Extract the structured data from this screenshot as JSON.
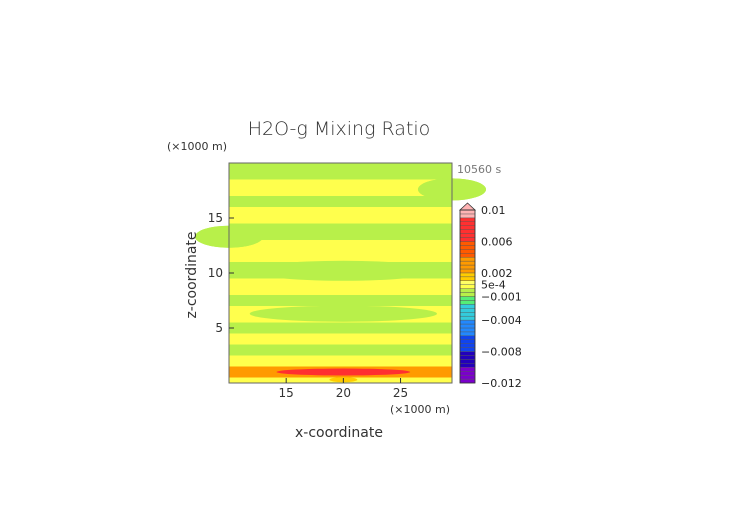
{
  "chart_data": {
    "type": "heatmap",
    "title": "H2O-g Mixing Ratio",
    "time_label": "10560 s",
    "xlabel": "x-coordinate",
    "ylabel": "z-coordinate",
    "x_unit": "(×1000 m)",
    "y_unit": "(×1000 m)",
    "xlim": [
      10,
      29.5
    ],
    "ylim": [
      0,
      20
    ],
    "x_ticks": [
      15,
      20,
      25
    ],
    "y_ticks": [
      5,
      10,
      15
    ],
    "colorbar": {
      "ticks": [
        {
          "value": 0.01,
          "label": "0.01"
        },
        {
          "value": 0.006,
          "label": "0.006"
        },
        {
          "value": 0.002,
          "label": "0.002"
        },
        {
          "value": 0.0005,
          "label": "5e-4"
        },
        {
          "value": -0.001,
          "label": "−0.001"
        },
        {
          "value": -0.004,
          "label": "−0.004"
        },
        {
          "value": -0.008,
          "label": "−0.008"
        },
        {
          "value": -0.012,
          "label": "−0.012"
        }
      ],
      "range": [
        -0.012,
        0.01
      ],
      "extend": "max"
    },
    "field_bands": [
      {
        "z": [
          0,
          0.5
        ],
        "value": 0.0002
      },
      {
        "z": [
          0.5,
          1.5
        ],
        "value": 0.003,
        "peak": {
          "x": 20,
          "z": 1.0,
          "value": 0.008
        }
      },
      {
        "z": [
          1.5,
          2.5
        ],
        "value": 0.0004
      },
      {
        "z": [
          2.5,
          3.5
        ],
        "value": -0.0006
      },
      {
        "z": [
          3.5,
          4.5
        ],
        "value": 0.0003
      },
      {
        "z": [
          4.5,
          5.5
        ],
        "value": -0.0005
      },
      {
        "z": [
          5.5,
          7
        ],
        "value": 0.0003
      },
      {
        "z": [
          7,
          8
        ],
        "value": -0.0006
      },
      {
        "z": [
          8,
          9.5
        ],
        "value": 0.0003
      },
      {
        "z": [
          9.5,
          11
        ],
        "value": -0.0007
      },
      {
        "z": [
          11,
          13
        ],
        "value": 0.0003
      },
      {
        "z": [
          13,
          14.5
        ],
        "value": -0.0006
      },
      {
        "z": [
          14.5,
          16
        ],
        "value": 0.0004
      },
      {
        "z": [
          16,
          17
        ],
        "value": -0.0005
      },
      {
        "z": [
          17,
          18.5
        ],
        "value": 0.0003
      },
      {
        "z": [
          18.5,
          20
        ],
        "value": -0.0005
      }
    ]
  }
}
